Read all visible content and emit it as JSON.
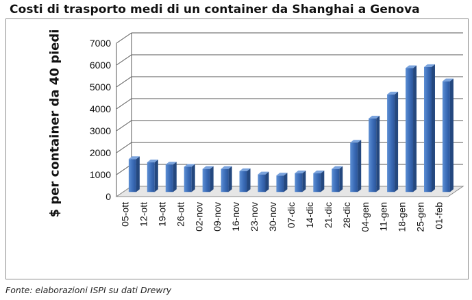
{
  "chart_data": {
    "type": "bar",
    "title": "Costi di trasporto medi di un container da Shanghai a Genova",
    "ylabel": "$ per container da 40 piedi",
    "xlabel": "",
    "ylim": [
      0,
      7000
    ],
    "yticks": [
      0,
      1000,
      2000,
      3000,
      4000,
      5000,
      6000,
      7000
    ],
    "categories": [
      "05-ott",
      "12-ott",
      "19-ott",
      "26-ott",
      "02-nov",
      "09-nov",
      "16-nov",
      "23-nov",
      "30-nov",
      "07-dic",
      "14-dic",
      "21-dic",
      "28-dic",
      "04-gen",
      "11-gen",
      "18-gen",
      "25-gen",
      "01-feb"
    ],
    "values": [
      1500,
      1350,
      1250,
      1150,
      1050,
      1050,
      950,
      800,
      750,
      850,
      850,
      1050,
      2250,
      3350,
      4450,
      5650,
      5700,
      5050
    ],
    "grid": true,
    "three_d": true,
    "bar_color": "#3868b4"
  },
  "source": "Fonte: elaborazioni ISPI su dati Drewry"
}
